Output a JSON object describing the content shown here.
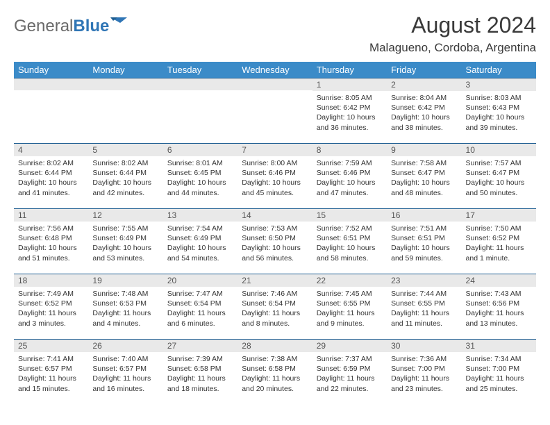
{
  "brand": {
    "general": "General",
    "blue": "Blue"
  },
  "title": "August 2024",
  "location": "Malagueno, Cordoba, Argentina",
  "colors": {
    "header_bg": "#3b8bc8",
    "header_border": "#1e5e92",
    "daynum_bg": "#e9e9e9",
    "brand_gray": "#6a6a6a",
    "brand_blue": "#2f75b5"
  },
  "weekdays": [
    "Sunday",
    "Monday",
    "Tuesday",
    "Wednesday",
    "Thursday",
    "Friday",
    "Saturday"
  ],
  "weeks": [
    [
      {
        "n": "",
        "sr": "",
        "ss": "",
        "dl": ""
      },
      {
        "n": "",
        "sr": "",
        "ss": "",
        "dl": ""
      },
      {
        "n": "",
        "sr": "",
        "ss": "",
        "dl": ""
      },
      {
        "n": "",
        "sr": "",
        "ss": "",
        "dl": ""
      },
      {
        "n": "1",
        "sr": "8:05 AM",
        "ss": "6:42 PM",
        "dl": "10 hours and 36 minutes."
      },
      {
        "n": "2",
        "sr": "8:04 AM",
        "ss": "6:42 PM",
        "dl": "10 hours and 38 minutes."
      },
      {
        "n": "3",
        "sr": "8:03 AM",
        "ss": "6:43 PM",
        "dl": "10 hours and 39 minutes."
      }
    ],
    [
      {
        "n": "4",
        "sr": "8:02 AM",
        "ss": "6:44 PM",
        "dl": "10 hours and 41 minutes."
      },
      {
        "n": "5",
        "sr": "8:02 AM",
        "ss": "6:44 PM",
        "dl": "10 hours and 42 minutes."
      },
      {
        "n": "6",
        "sr": "8:01 AM",
        "ss": "6:45 PM",
        "dl": "10 hours and 44 minutes."
      },
      {
        "n": "7",
        "sr": "8:00 AM",
        "ss": "6:46 PM",
        "dl": "10 hours and 45 minutes."
      },
      {
        "n": "8",
        "sr": "7:59 AM",
        "ss": "6:46 PM",
        "dl": "10 hours and 47 minutes."
      },
      {
        "n": "9",
        "sr": "7:58 AM",
        "ss": "6:47 PM",
        "dl": "10 hours and 48 minutes."
      },
      {
        "n": "10",
        "sr": "7:57 AM",
        "ss": "6:47 PM",
        "dl": "10 hours and 50 minutes."
      }
    ],
    [
      {
        "n": "11",
        "sr": "7:56 AM",
        "ss": "6:48 PM",
        "dl": "10 hours and 51 minutes."
      },
      {
        "n": "12",
        "sr": "7:55 AM",
        "ss": "6:49 PM",
        "dl": "10 hours and 53 minutes."
      },
      {
        "n": "13",
        "sr": "7:54 AM",
        "ss": "6:49 PM",
        "dl": "10 hours and 54 minutes."
      },
      {
        "n": "14",
        "sr": "7:53 AM",
        "ss": "6:50 PM",
        "dl": "10 hours and 56 minutes."
      },
      {
        "n": "15",
        "sr": "7:52 AM",
        "ss": "6:51 PM",
        "dl": "10 hours and 58 minutes."
      },
      {
        "n": "16",
        "sr": "7:51 AM",
        "ss": "6:51 PM",
        "dl": "10 hours and 59 minutes."
      },
      {
        "n": "17",
        "sr": "7:50 AM",
        "ss": "6:52 PM",
        "dl": "11 hours and 1 minute."
      }
    ],
    [
      {
        "n": "18",
        "sr": "7:49 AM",
        "ss": "6:52 PM",
        "dl": "11 hours and 3 minutes."
      },
      {
        "n": "19",
        "sr": "7:48 AM",
        "ss": "6:53 PM",
        "dl": "11 hours and 4 minutes."
      },
      {
        "n": "20",
        "sr": "7:47 AM",
        "ss": "6:54 PM",
        "dl": "11 hours and 6 minutes."
      },
      {
        "n": "21",
        "sr": "7:46 AM",
        "ss": "6:54 PM",
        "dl": "11 hours and 8 minutes."
      },
      {
        "n": "22",
        "sr": "7:45 AM",
        "ss": "6:55 PM",
        "dl": "11 hours and 9 minutes."
      },
      {
        "n": "23",
        "sr": "7:44 AM",
        "ss": "6:55 PM",
        "dl": "11 hours and 11 minutes."
      },
      {
        "n": "24",
        "sr": "7:43 AM",
        "ss": "6:56 PM",
        "dl": "11 hours and 13 minutes."
      }
    ],
    [
      {
        "n": "25",
        "sr": "7:41 AM",
        "ss": "6:57 PM",
        "dl": "11 hours and 15 minutes."
      },
      {
        "n": "26",
        "sr": "7:40 AM",
        "ss": "6:57 PM",
        "dl": "11 hours and 16 minutes."
      },
      {
        "n": "27",
        "sr": "7:39 AM",
        "ss": "6:58 PM",
        "dl": "11 hours and 18 minutes."
      },
      {
        "n": "28",
        "sr": "7:38 AM",
        "ss": "6:58 PM",
        "dl": "11 hours and 20 minutes."
      },
      {
        "n": "29",
        "sr": "7:37 AM",
        "ss": "6:59 PM",
        "dl": "11 hours and 22 minutes."
      },
      {
        "n": "30",
        "sr": "7:36 AM",
        "ss": "7:00 PM",
        "dl": "11 hours and 23 minutes."
      },
      {
        "n": "31",
        "sr": "7:34 AM",
        "ss": "7:00 PM",
        "dl": "11 hours and 25 minutes."
      }
    ]
  ],
  "labels": {
    "sunrise": "Sunrise:",
    "sunset": "Sunset:",
    "daylight": "Daylight:"
  }
}
